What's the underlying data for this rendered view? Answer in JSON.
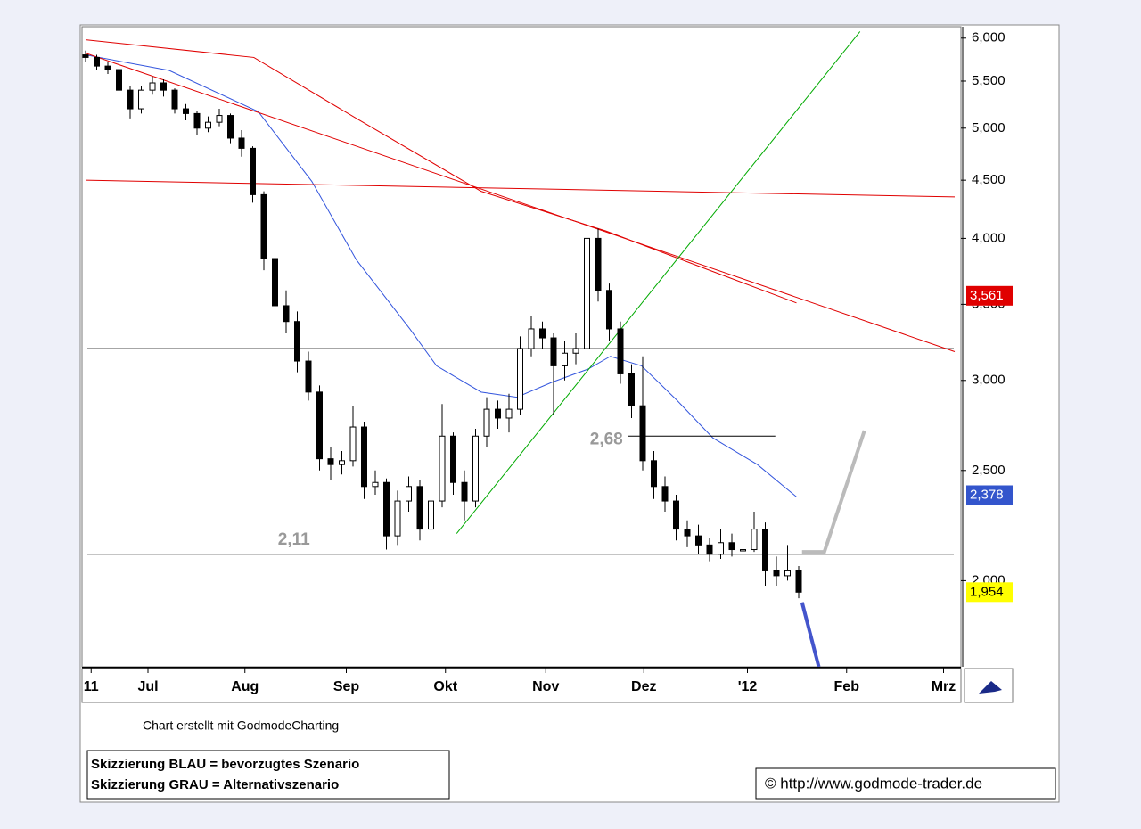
{
  "chart_data": {
    "type": "candlestick",
    "log": true,
    "ylim": [
      1.68,
      6.14
    ],
    "yticks": [
      {
        "value": 6,
        "label": "6,000"
      },
      {
        "value": 5.5,
        "label": "5,500"
      },
      {
        "value": 5,
        "label": "5,000"
      },
      {
        "value": 4.5,
        "label": "4,500"
      },
      {
        "value": 4,
        "label": "4,000"
      },
      {
        "value": 3.5,
        "label": "3,500"
      },
      {
        "value": 3,
        "label": "3,000"
      },
      {
        "value": 2.5,
        "label": "2,500"
      },
      {
        "value": 2,
        "label": "2,000"
      }
    ],
    "xlim": [
      -0.32,
      78.56
    ],
    "xticks": [
      {
        "value": 0.5,
        "label": "11"
      },
      {
        "value": 5.6,
        "label": "Jul"
      },
      {
        "value": 14.3,
        "label": "Aug"
      },
      {
        "value": 23.4,
        "label": "Sep"
      },
      {
        "value": 32.3,
        "label": "Okt"
      },
      {
        "value": 41.3,
        "label": "Nov"
      },
      {
        "value": 50.1,
        "label": "Dez"
      },
      {
        "value": 59.4,
        "label": "'12"
      },
      {
        "value": 68.3,
        "label": "Feb"
      },
      {
        "value": 77,
        "label": "Mrz"
      }
    ],
    "ohlc": [
      [
        5.8,
        5.85,
        5.72,
        5.77
      ],
      [
        5.77,
        5.8,
        5.62,
        5.67
      ],
      [
        5.67,
        5.72,
        5.58,
        5.63
      ],
      [
        5.63,
        5.66,
        5.3,
        5.4
      ],
      [
        5.4,
        5.45,
        5.1,
        5.2
      ],
      [
        5.2,
        5.45,
        5.15,
        5.4
      ],
      [
        5.4,
        5.55,
        5.35,
        5.48
      ],
      [
        5.48,
        5.52,
        5.33,
        5.4
      ],
      [
        5.4,
        5.42,
        5.15,
        5.2
      ],
      [
        5.2,
        5.25,
        5.08,
        5.15
      ],
      [
        5.15,
        5.18,
        4.93,
        5.0
      ],
      [
        5.0,
        5.12,
        4.96,
        5.06
      ],
      [
        5.06,
        5.2,
        5.02,
        5.13
      ],
      [
        5.13,
        5.15,
        4.85,
        4.9
      ],
      [
        4.9,
        4.98,
        4.72,
        4.8
      ],
      [
        4.8,
        4.82,
        4.3,
        4.37
      ],
      [
        4.37,
        4.4,
        3.75,
        3.84
      ],
      [
        3.84,
        3.9,
        3.4,
        3.49
      ],
      [
        3.49,
        3.6,
        3.3,
        3.38
      ],
      [
        3.38,
        3.45,
        3.05,
        3.12
      ],
      [
        3.12,
        3.18,
        2.88,
        2.93
      ],
      [
        2.93,
        2.97,
        2.5,
        2.56
      ],
      [
        2.56,
        2.62,
        2.45,
        2.53
      ],
      [
        2.53,
        2.6,
        2.48,
        2.55
      ],
      [
        2.55,
        2.85,
        2.52,
        2.73
      ],
      [
        2.73,
        2.76,
        2.36,
        2.42
      ],
      [
        2.42,
        2.5,
        2.38,
        2.44
      ],
      [
        2.44,
        2.46,
        2.13,
        2.19
      ],
      [
        2.19,
        2.4,
        2.15,
        2.35
      ],
      [
        2.35,
        2.47,
        2.3,
        2.42
      ],
      [
        2.42,
        2.45,
        2.17,
        2.22
      ],
      [
        2.22,
        2.4,
        2.18,
        2.35
      ],
      [
        2.35,
        2.86,
        2.32,
        2.68
      ],
      [
        2.68,
        2.7,
        2.38,
        2.44
      ],
      [
        2.44,
        2.5,
        2.26,
        2.35
      ],
      [
        2.35,
        2.72,
        2.32,
        2.68
      ],
      [
        2.68,
        2.9,
        2.62,
        2.83
      ],
      [
        2.83,
        2.88,
        2.72,
        2.78
      ],
      [
        2.78,
        2.92,
        2.7,
        2.83
      ],
      [
        2.83,
        3.28,
        2.8,
        3.2
      ],
      [
        3.2,
        3.42,
        3.15,
        3.33
      ],
      [
        3.33,
        3.38,
        3.2,
        3.27
      ],
      [
        3.27,
        3.3,
        2.8,
        3.09
      ],
      [
        3.09,
        3.25,
        3.0,
        3.17
      ],
      [
        3.17,
        3.3,
        3.1,
        3.2
      ],
      [
        3.2,
        4.1,
        3.15,
        4.0
      ],
      [
        4.0,
        4.08,
        3.52,
        3.6
      ],
      [
        3.6,
        3.65,
        3.25,
        3.33
      ],
      [
        3.33,
        3.38,
        2.98,
        3.04
      ],
      [
        3.04,
        3.1,
        2.78,
        2.85
      ],
      [
        2.85,
        3.15,
        2.5,
        2.55
      ],
      [
        2.55,
        2.6,
        2.36,
        2.42
      ],
      [
        2.42,
        2.47,
        2.3,
        2.35
      ],
      [
        2.35,
        2.38,
        2.17,
        2.22
      ],
      [
        2.22,
        2.26,
        2.14,
        2.19
      ],
      [
        2.19,
        2.24,
        2.11,
        2.15
      ],
      [
        2.15,
        2.18,
        2.08,
        2.11
      ],
      [
        2.11,
        2.22,
        2.09,
        2.16
      ],
      [
        2.16,
        2.2,
        2.1,
        2.13
      ],
      [
        2.13,
        2.16,
        2.1,
        2.13
      ],
      [
        2.13,
        2.3,
        2.12,
        2.22
      ],
      [
        2.22,
        2.25,
        1.98,
        2.04
      ],
      [
        2.04,
        2.1,
        1.98,
        2.02
      ],
      [
        2.02,
        2.15,
        2.0,
        2.04
      ],
      [
        2.04,
        2.06,
        1.93,
        1.954
      ]
    ],
    "lines": [
      {
        "color": "#3355dd",
        "width": 1,
        "x": [
          0,
          7.5,
          15.5,
          20.3,
          24.3,
          29.1,
          31.5,
          35.5,
          38.7,
          41.9,
          45.1,
          47.1,
          49.9,
          53.1,
          56.3,
          60.3,
          63.8
        ],
        "values": [
          5.8,
          5.62,
          5.17,
          4.49,
          3.83,
          3.33,
          3.09,
          2.93,
          2.9,
          2.99,
          3.07,
          3.15,
          3.09,
          2.88,
          2.67,
          2.53,
          2.37
        ]
      },
      {
        "color": "#e00000",
        "width": 1,
        "x": [
          0,
          15.1,
          24.3,
          35.5,
          46.7,
          56.3,
          63.8
        ],
        "values": [
          5.98,
          5.77,
          5.1,
          4.4,
          4.06,
          3.74,
          3.51
        ]
      },
      {
        "color": "#e00000",
        "width": 1,
        "x": [
          0,
          78
        ],
        "values": [
          5.82,
          3.18
        ]
      },
      {
        "color": "#e00000",
        "width": 1,
        "x": [
          0,
          78
        ],
        "values": [
          4.5,
          4.35
        ]
      },
      {
        "color": "#00aa00",
        "width": 1,
        "x": [
          33.3,
          69.5
        ],
        "values": [
          2.2,
          6.08
        ]
      },
      {
        "color": "#4455cc",
        "width": 4,
        "x": [
          64.3,
          65.8
        ],
        "values": [
          1.914,
          1.68
        ]
      },
      {
        "color": "#bbbbbb",
        "width": 4,
        "x": [
          64.3,
          66.3,
          69.9
        ],
        "values": [
          2.12,
          2.12,
          2.71
        ]
      }
    ],
    "hlines": [
      {
        "color": "#888888",
        "value": 3.2
      },
      {
        "color": "#888888",
        "value": 2.11
      }
    ],
    "annotations": [
      {
        "text": "2,11",
        "x": 18.7,
        "value": 2.11
      },
      {
        "text": "2,68",
        "x": 48.7,
        "x2": 61.9,
        "value": 2.68
      }
    ],
    "price_labels": [
      {
        "value": 3.561,
        "label": "3,561",
        "color": "#e00000",
        "text_color": "#ffffff"
      },
      {
        "value": 2.378,
        "label": "2,378",
        "color": "#3355cc",
        "text_color": "#ffffff"
      },
      {
        "value": 1.954,
        "label": "1,954",
        "color": "#ffff00",
        "text_color": "#000000"
      }
    ]
  },
  "credit": "Chart erstellt mit GodmodeCharting",
  "legend_box": [
    "Skizzierung BLAU = bevorzugtes Szenario",
    "Skizzierung GRAU = Alternativszenario"
  ],
  "url": "© http://www.godmode-trader.de"
}
